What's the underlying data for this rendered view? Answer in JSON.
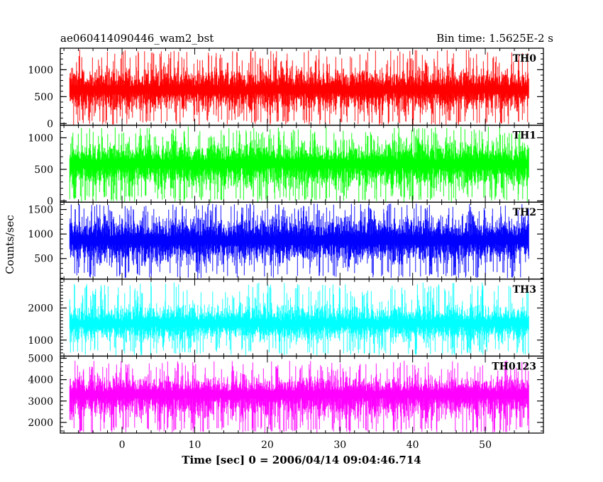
{
  "chart_data": {
    "type": "line",
    "title_left": "ae060414090446_wam2_bst",
    "title_right": "Bin time: 1.5625E-2 s",
    "xlabel": "Time [sec] 0 = 2006/04/14 09:04:46.714",
    "ylabel": "Counts/sec",
    "xlim": [
      -8.5,
      58
    ],
    "x_ticks": [
      0,
      10,
      20,
      30,
      40,
      50
    ],
    "x_tick_labels": [
      "0",
      "10",
      "20",
      "30",
      "40",
      "50"
    ],
    "data_x_range": [
      -7.2,
      56.0
    ],
    "grid": false,
    "panels": [
      {
        "name": "TH0",
        "color": "#ff0000",
        "ylim": [
          -30,
          1400
        ],
        "y_ticks": [
          0,
          500,
          1000
        ],
        "y_tick_labels": [
          "0",
          "500",
          "1000"
        ],
        "lower_envelope": 80,
        "upper_envelope": 1100,
        "mean": 620,
        "peak": 1380
      },
      {
        "name": "TH1",
        "color": "#00ff00",
        "ylim": [
          -20,
          1200
        ],
        "y_ticks": [
          0,
          500,
          1000
        ],
        "y_tick_labels": [
          "0",
          "500",
          "1000"
        ],
        "lower_envelope": 90,
        "upper_envelope": 1000,
        "mean": 580,
        "peak": 1180
      },
      {
        "name": "TH2",
        "color": "#0000ff",
        "ylim": [
          80,
          1650
        ],
        "y_ticks": [
          500,
          1000,
          1500
        ],
        "y_tick_labels": [
          "500",
          "1000",
          "1500"
        ],
        "lower_envelope": 250,
        "upper_envelope": 1450,
        "mean": 860,
        "peak": 1620
      },
      {
        "name": "TH3",
        "color": "#00ffff",
        "ylim": [
          500,
          2900
        ],
        "y_ticks": [
          1000,
          2000
        ],
        "y_tick_labels": [
          "1000",
          "2000"
        ],
        "lower_envelope": 800,
        "upper_envelope": 2200,
        "mean": 1500,
        "peak": 2800
      },
      {
        "name": "TH0123",
        "color": "#ff00ff",
        "ylim": [
          1500,
          5100
        ],
        "y_ticks": [
          2000,
          3000,
          4000,
          5000
        ],
        "y_tick_labels": [
          "2000",
          "3000",
          "4000",
          "5000"
        ],
        "lower_envelope": 1800,
        "upper_envelope": 4300,
        "mean": 3300,
        "peak": 4900
      }
    ]
  }
}
